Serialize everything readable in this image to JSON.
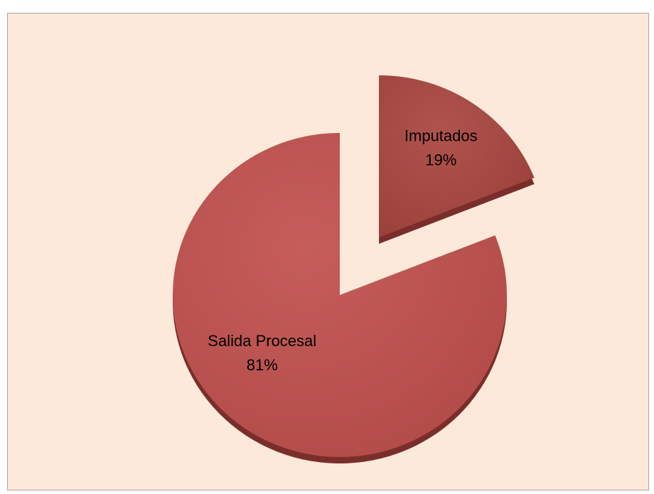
{
  "chart_data": {
    "type": "pie",
    "categories": [
      "Imputados",
      "Salida Procesal"
    ],
    "values": [
      19,
      81
    ],
    "value_labels": [
      "19%",
      "81%"
    ],
    "colors": [
      "#a8443f",
      "#c0504d"
    ]
  }
}
